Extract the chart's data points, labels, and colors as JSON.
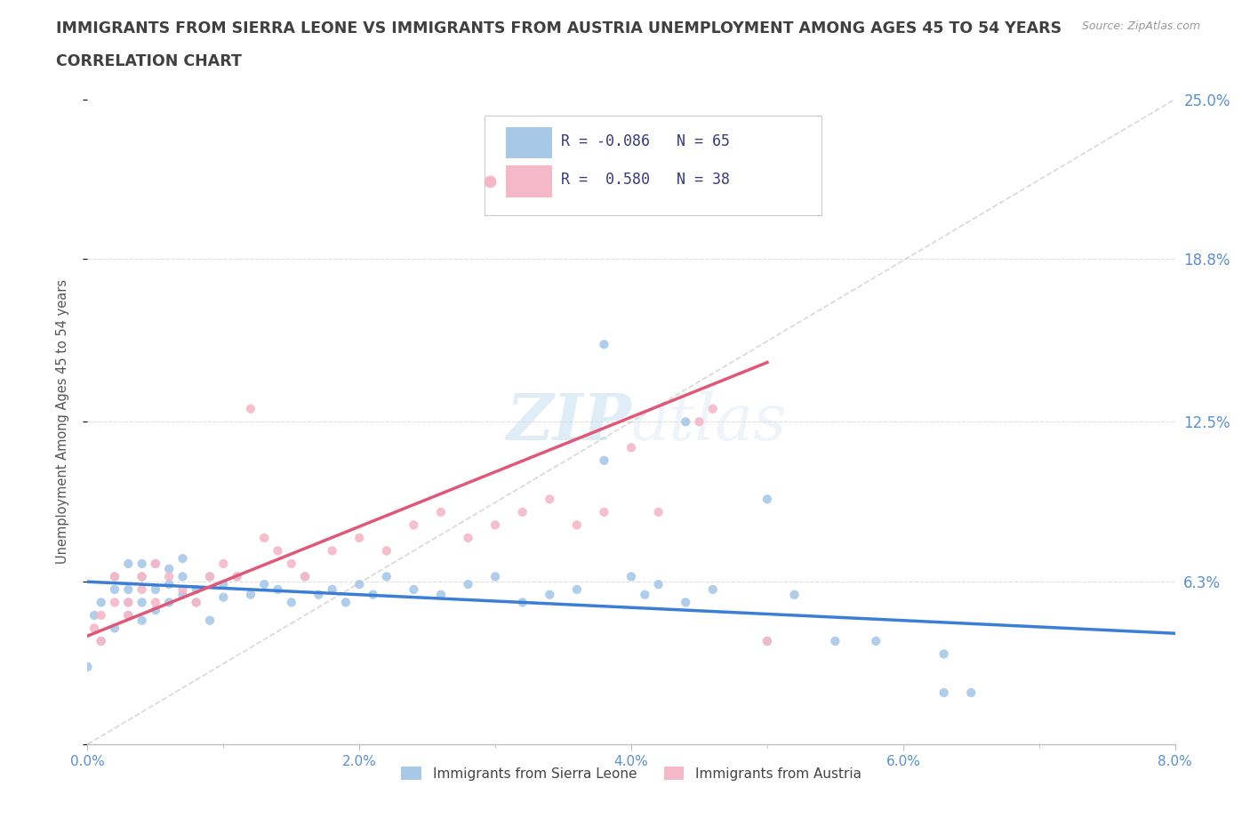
{
  "title_line1": "IMMIGRANTS FROM SIERRA LEONE VS IMMIGRANTS FROM AUSTRIA UNEMPLOYMENT AMONG AGES 45 TO 54 YEARS",
  "title_line2": "CORRELATION CHART",
  "source_text": "Source: ZipAtlas.com",
  "ylabel": "Unemployment Among Ages 45 to 54 years",
  "xlim": [
    0.0,
    0.08
  ],
  "ylim": [
    0.0,
    0.25
  ],
  "xticks": [
    0.0,
    0.01,
    0.02,
    0.03,
    0.04,
    0.05,
    0.06,
    0.07,
    0.08
  ],
  "xticklabels_major": [
    "0.0%",
    "2.0%",
    "4.0%",
    "6.0%",
    "8.0%"
  ],
  "xmajor_ticks": [
    0.0,
    0.02,
    0.04,
    0.06,
    0.08
  ],
  "ytick_values": [
    0.0,
    0.063,
    0.125,
    0.188,
    0.25
  ],
  "ytick_labels_right": [
    "",
    "6.3%",
    "12.5%",
    "18.8%",
    "25.0%"
  ],
  "sierra_leone_color": "#a8c8e8",
  "austria_color": "#f5b8c8",
  "sierra_leone_line_color": "#3a7fd5",
  "austria_line_color": "#e05878",
  "ref_line_color": "#c8c8c8",
  "legend_sierra_r": "-0.086",
  "legend_sierra_n": "65",
  "legend_austria_r": "0.580",
  "legend_austria_n": "38",
  "legend_label_sierra": "Immigrants from Sierra Leone",
  "legend_label_austria": "Immigrants from Austria",
  "watermark_zip": "ZIP",
  "watermark_atlas": "atlas",
  "background_color": "#ffffff",
  "grid_color": "#d8d8d8",
  "title_color": "#404040",
  "tick_label_color": "#5a90d0",
  "spine_color": "#c0c0c0",
  "sl_x": [
    0.0005,
    0.001,
    0.001,
    0.002,
    0.002,
    0.002,
    0.003,
    0.003,
    0.003,
    0.003,
    0.004,
    0.004,
    0.004,
    0.004,
    0.005,
    0.005,
    0.005,
    0.006,
    0.006,
    0.006,
    0.007,
    0.007,
    0.007,
    0.008,
    0.008,
    0.009,
    0.009,
    0.01,
    0.01,
    0.011,
    0.012,
    0.013,
    0.014,
    0.015,
    0.016,
    0.017,
    0.018,
    0.019,
    0.02,
    0.021,
    0.022,
    0.024,
    0.026,
    0.028,
    0.03,
    0.032,
    0.034,
    0.036,
    0.04,
    0.041,
    0.042,
    0.044,
    0.046,
    0.05,
    0.052,
    0.055,
    0.058,
    0.063,
    0.065,
    0.038,
    0.038,
    0.05,
    0.044,
    0.063,
    0.0
  ],
  "sl_y": [
    0.05,
    0.055,
    0.04,
    0.06,
    0.065,
    0.045,
    0.055,
    0.06,
    0.07,
    0.05,
    0.065,
    0.055,
    0.07,
    0.048,
    0.06,
    0.07,
    0.052,
    0.062,
    0.068,
    0.055,
    0.058,
    0.065,
    0.072,
    0.06,
    0.055,
    0.065,
    0.048,
    0.062,
    0.057,
    0.065,
    0.058,
    0.062,
    0.06,
    0.055,
    0.065,
    0.058,
    0.06,
    0.055,
    0.062,
    0.058,
    0.065,
    0.06,
    0.058,
    0.062,
    0.065,
    0.055,
    0.058,
    0.06,
    0.065,
    0.058,
    0.062,
    0.055,
    0.06,
    0.04,
    0.058,
    0.04,
    0.04,
    0.02,
    0.02,
    0.155,
    0.11,
    0.095,
    0.125,
    0.035,
    0.03
  ],
  "au_x": [
    0.0005,
    0.001,
    0.001,
    0.002,
    0.002,
    0.003,
    0.003,
    0.004,
    0.004,
    0.005,
    0.005,
    0.006,
    0.007,
    0.008,
    0.009,
    0.01,
    0.011,
    0.012,
    0.013,
    0.014,
    0.015,
    0.016,
    0.018,
    0.02,
    0.022,
    0.024,
    0.026,
    0.028,
    0.03,
    0.032,
    0.034,
    0.036,
    0.038,
    0.04,
    0.042,
    0.045,
    0.046,
    0.05
  ],
  "au_y": [
    0.045,
    0.05,
    0.04,
    0.055,
    0.065,
    0.05,
    0.055,
    0.065,
    0.06,
    0.055,
    0.07,
    0.065,
    0.06,
    0.055,
    0.065,
    0.07,
    0.065,
    0.13,
    0.08,
    0.075,
    0.07,
    0.065,
    0.075,
    0.08,
    0.075,
    0.085,
    0.09,
    0.08,
    0.085,
    0.09,
    0.095,
    0.085,
    0.09,
    0.115,
    0.09,
    0.125,
    0.13,
    0.04
  ],
  "sl_line_x": [
    0.0,
    0.08
  ],
  "sl_line_y": [
    0.063,
    0.043
  ],
  "au_line_x": [
    0.0,
    0.05
  ],
  "au_line_y": [
    0.042,
    0.148
  ]
}
